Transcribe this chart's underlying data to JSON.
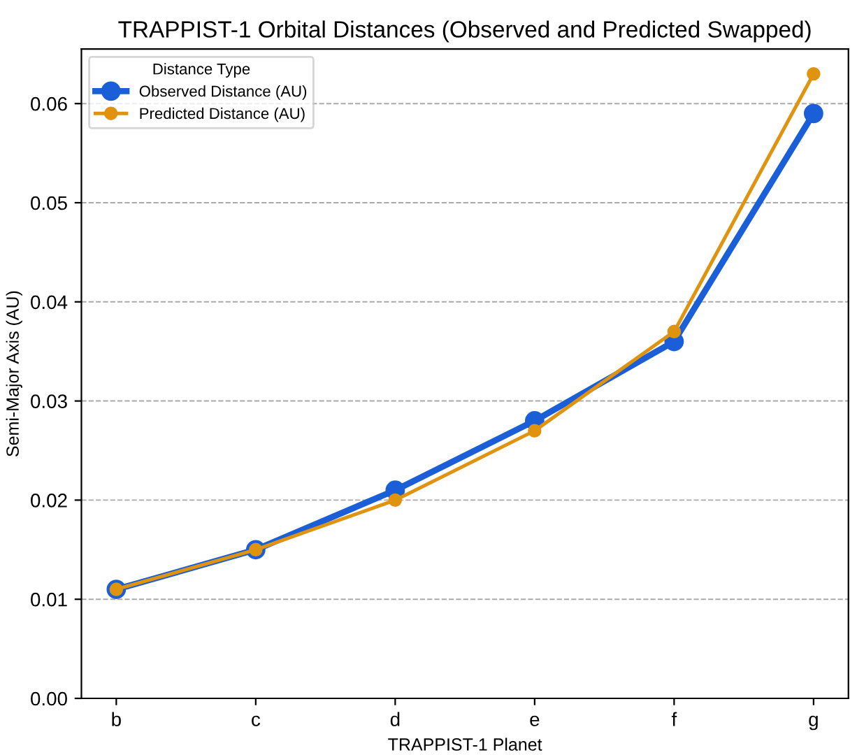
{
  "chart_data": {
    "type": "line",
    "title": "TRAPPIST-1 Orbital Distances (Observed and Predicted Swapped)",
    "xlabel": "TRAPPIST-1 Planet",
    "ylabel": "Semi-Major Axis (AU)",
    "legend_title": "Distance Type",
    "categories": [
      "b",
      "c",
      "d",
      "e",
      "f",
      "g"
    ],
    "series": [
      {
        "name": "Observed Distance (AU)",
        "color": "#1a5fd8",
        "values": [
          0.011,
          0.015,
          0.021,
          0.028,
          0.036,
          0.059
        ]
      },
      {
        "name": "Predicted Distance (AU)",
        "color": "#e0930e",
        "values": [
          0.011,
          0.015,
          0.02,
          0.027,
          0.037,
          0.063
        ]
      }
    ],
    "ylim": [
      0,
      0.0655
    ],
    "yticks": [
      {
        "value": 0,
        "label": "0.00"
      },
      {
        "value": 0.01,
        "label": "0.01"
      },
      {
        "value": 0.02,
        "label": "0.02"
      },
      {
        "value": 0.03,
        "label": "0.03"
      },
      {
        "value": 0.04,
        "label": "0.04"
      },
      {
        "value": 0.05,
        "label": "0.05"
      },
      {
        "value": 0.06,
        "label": "0.06"
      }
    ],
    "grid": "y",
    "legend": "top left",
    "marker": "circle",
    "line_style": "solid"
  }
}
